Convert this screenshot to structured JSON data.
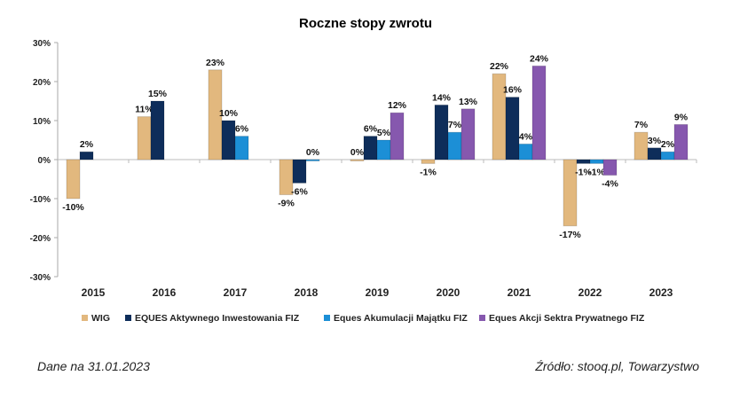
{
  "chart_data": {
    "type": "bar",
    "title": "Roczne stopy zwrotu",
    "xlabel": "",
    "ylabel": "",
    "ylim": [
      -30,
      30
    ],
    "yticks": [
      30,
      20,
      10,
      0,
      -10,
      -20,
      -30
    ],
    "ytick_labels": [
      "30%",
      "20%",
      "10%",
      "0%",
      "-10%",
      "-20%",
      "-30%"
    ],
    "categories": [
      "2015",
      "2016",
      "2017",
      "2018",
      "2019",
      "2020",
      "2021",
      "2022",
      "2023"
    ],
    "legend_position": "bottom",
    "series": [
      {
        "name": "WIG",
        "color": "#E2B87E",
        "values": [
          -10,
          11,
          23,
          -9,
          0,
          -1,
          22,
          -17,
          7
        ],
        "labels": [
          "-10%",
          "11%",
          "23%",
          "-9%",
          "0%",
          "-1%",
          "22%",
          "-17%",
          "7%"
        ]
      },
      {
        "name": "EQUES Aktywnego Inwestowania FIZ",
        "color": "#0E2D5A",
        "values": [
          2,
          15,
          10,
          -6,
          6,
          14,
          16,
          -1,
          3
        ],
        "labels": [
          "2%",
          "15%",
          "10%",
          "-6%",
          "6%",
          "14%",
          "16%",
          "-1%",
          "3%"
        ]
      },
      {
        "name": "Eques Akumulacji Majątku FIZ",
        "color": "#1C8FD6",
        "values": [
          null,
          null,
          6,
          0,
          5,
          7,
          4,
          -1,
          2
        ],
        "labels": [
          null,
          null,
          "6%",
          "0%",
          "5%",
          "7%",
          "4%",
          "-1%",
          "2%"
        ]
      },
      {
        "name": "Eques Akcji Sektra Prywatnego FIZ",
        "color": "#8658AE",
        "values": [
          null,
          null,
          null,
          null,
          12,
          13,
          24,
          -4,
          9
        ],
        "labels": [
          null,
          null,
          null,
          null,
          "12%",
          "13%",
          "24%",
          "-4%",
          "9%"
        ]
      }
    ]
  },
  "footer": {
    "date_note": "Dane na 31.01.2023",
    "source": "Źródło: stooq.pl, Towarzystwo"
  }
}
